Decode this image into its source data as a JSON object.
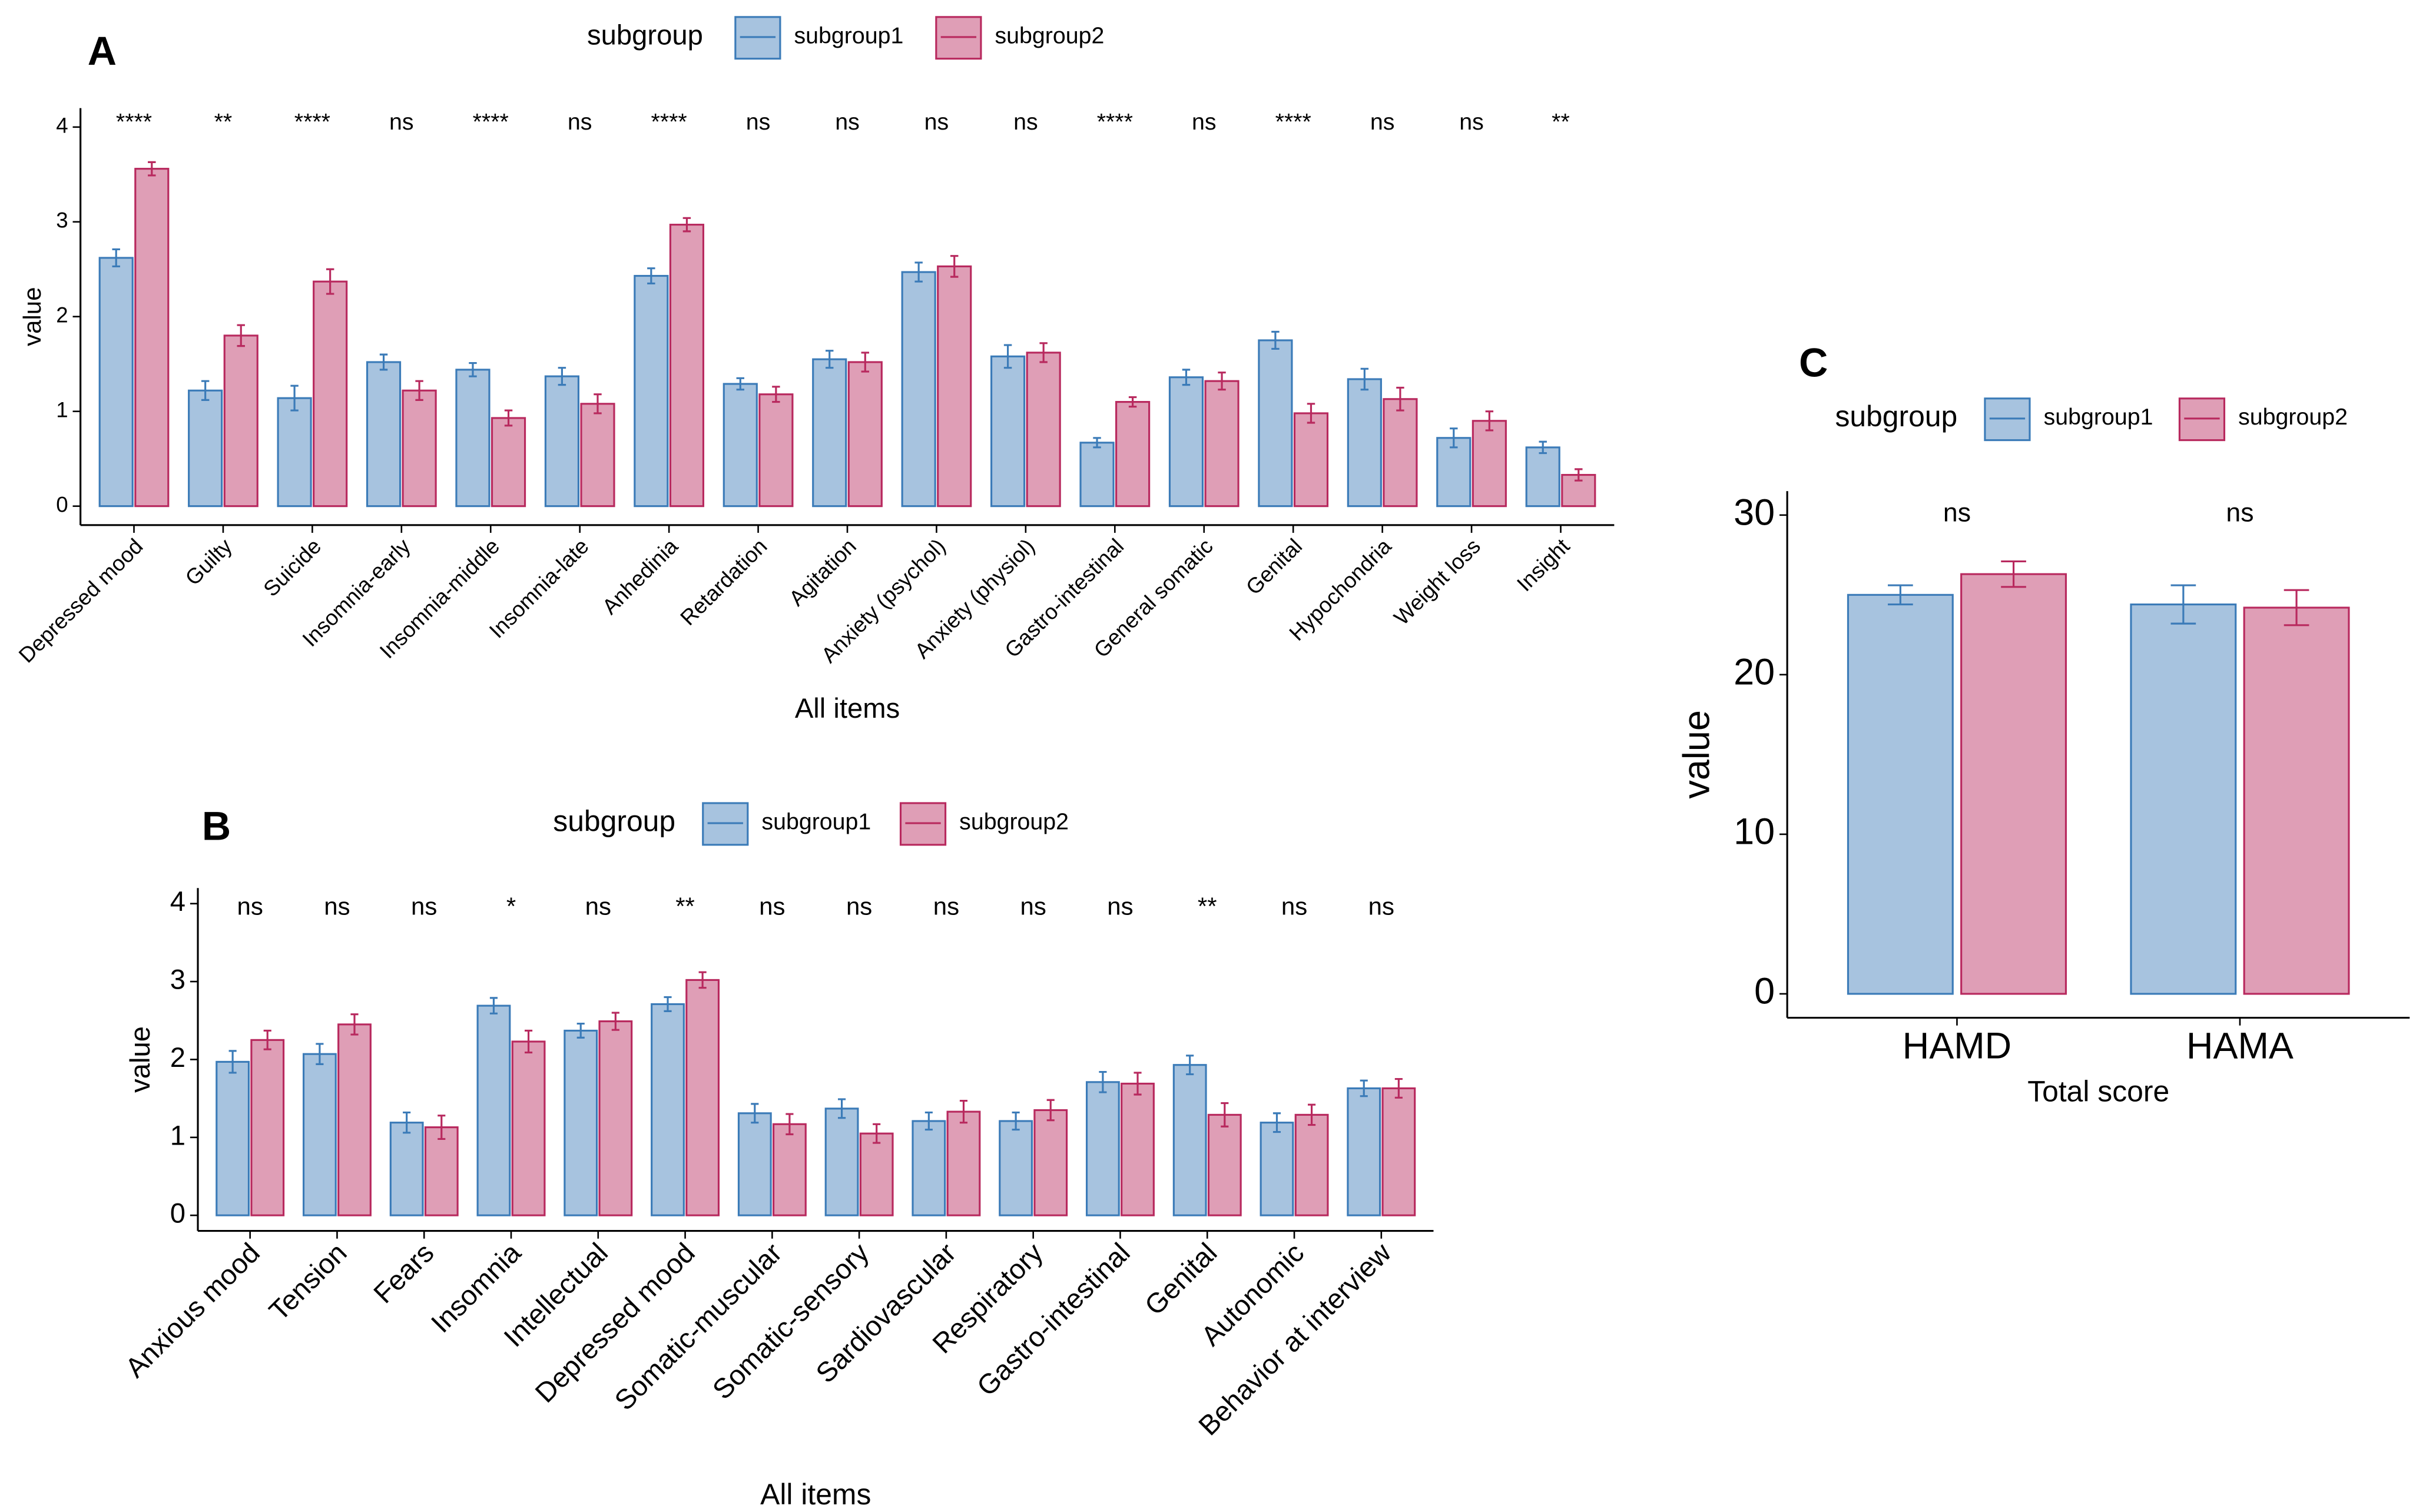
{
  "chart_data": [
    {
      "type": "bar",
      "panel_label": "A",
      "legend_title": "subgroup",
      "categories": [
        "Depressed mood",
        "Guilty",
        "Suicide",
        "Insomnia-early",
        "Insomnia-middle",
        "Insomnia-late",
        "Anhedinia",
        "Retardation",
        "Agitation",
        "Anxiety (psychol)",
        "Anxiety (physiol)",
        "Gastro-intestinal",
        "General somatic",
        "Genital",
        "Hypochondria",
        "Weight loss",
        "Insight"
      ],
      "series": [
        {
          "name": "subgroup1",
          "color": "#3b7bb8",
          "values": [
            2.62,
            1.22,
            1.14,
            1.52,
            1.44,
            1.37,
            2.43,
            1.29,
            1.55,
            2.47,
            1.58,
            0.67,
            1.36,
            1.75,
            1.34,
            0.72,
            0.62
          ],
          "errors": [
            0.09,
            0.1,
            0.13,
            0.08,
            0.07,
            0.09,
            0.08,
            0.06,
            0.09,
            0.1,
            0.12,
            0.05,
            0.08,
            0.09,
            0.11,
            0.1,
            0.06
          ]
        },
        {
          "name": "subgroup2",
          "color": "#b8295e",
          "values": [
            3.56,
            1.8,
            2.37,
            1.22,
            0.93,
            1.08,
            2.97,
            1.18,
            1.52,
            2.53,
            1.62,
            1.1,
            1.32,
            0.98,
            1.13,
            0.9,
            0.33
          ],
          "errors": [
            0.07,
            0.11,
            0.13,
            0.1,
            0.08,
            0.1,
            0.07,
            0.08,
            0.1,
            0.11,
            0.1,
            0.05,
            0.09,
            0.1,
            0.12,
            0.1,
            0.06
          ]
        }
      ],
      "annotations": [
        "****",
        "**",
        "****",
        "ns",
        "****",
        "ns",
        "****",
        "ns",
        "ns",
        "ns",
        "ns",
        "****",
        "ns",
        "****",
        "ns",
        "ns",
        "**"
      ],
      "xlabel": "All items",
      "ylabel": "value",
      "ylim": [
        -0.2,
        4.2
      ],
      "yticks": [
        0,
        1,
        2,
        3,
        4
      ]
    },
    {
      "type": "bar",
      "panel_label": "B",
      "legend_title": "subgroup",
      "categories": [
        "Anxious mood",
        "Tension",
        "Fears",
        "Insomnia",
        "Intellectual",
        "Depressed mood",
        "Somatic-muscular",
        "Somatic-sensory",
        "Sardiovascular",
        "Respiratory",
        "Gastro-intestinal",
        "Genital",
        "Autonomic",
        "Behavior at interview"
      ],
      "series": [
        {
          "name": "subgroup1",
          "color": "#3b7bb8",
          "values": [
            1.97,
            2.07,
            1.19,
            2.69,
            2.37,
            2.71,
            1.31,
            1.37,
            1.21,
            1.21,
            1.71,
            1.93,
            1.19,
            1.63
          ],
          "errors": [
            0.14,
            0.13,
            0.13,
            0.1,
            0.09,
            0.09,
            0.12,
            0.12,
            0.11,
            0.11,
            0.13,
            0.12,
            0.12,
            0.1
          ]
        },
        {
          "name": "subgroup2",
          "color": "#b8295e",
          "values": [
            2.25,
            2.45,
            1.13,
            2.23,
            2.49,
            3.02,
            1.17,
            1.05,
            1.33,
            1.35,
            1.69,
            1.29,
            1.29,
            1.63
          ],
          "errors": [
            0.12,
            0.13,
            0.15,
            0.14,
            0.11,
            0.1,
            0.13,
            0.12,
            0.14,
            0.13,
            0.14,
            0.15,
            0.13,
            0.12
          ]
        }
      ],
      "annotations": [
        "ns",
        "ns",
        "ns",
        "*",
        "ns",
        "**",
        "ns",
        "ns",
        "ns",
        "ns",
        "ns",
        "**",
        "ns",
        "ns"
      ],
      "xlabel": "All items",
      "ylabel": "value",
      "ylim": [
        -0.2,
        4.2
      ],
      "yticks": [
        0,
        1,
        2,
        3,
        4
      ]
    },
    {
      "type": "bar",
      "panel_label": "C",
      "legend_title": "subgroup",
      "categories": [
        "HAMD",
        "HAMA"
      ],
      "series": [
        {
          "name": "subgroup1",
          "color": "#3b7bb8",
          "values": [
            25.0,
            24.4
          ],
          "errors": [
            0.6,
            1.2
          ]
        },
        {
          "name": "subgroup2",
          "color": "#b8295e",
          "values": [
            26.3,
            24.2
          ],
          "errors": [
            0.8,
            1.1
          ]
        }
      ],
      "annotations": [
        "ns",
        "ns"
      ],
      "xlabel": "Total score",
      "ylabel": "value",
      "ylim": [
        -1.5,
        31.5
      ],
      "yticks": [
        0,
        10,
        20,
        30
      ]
    }
  ]
}
